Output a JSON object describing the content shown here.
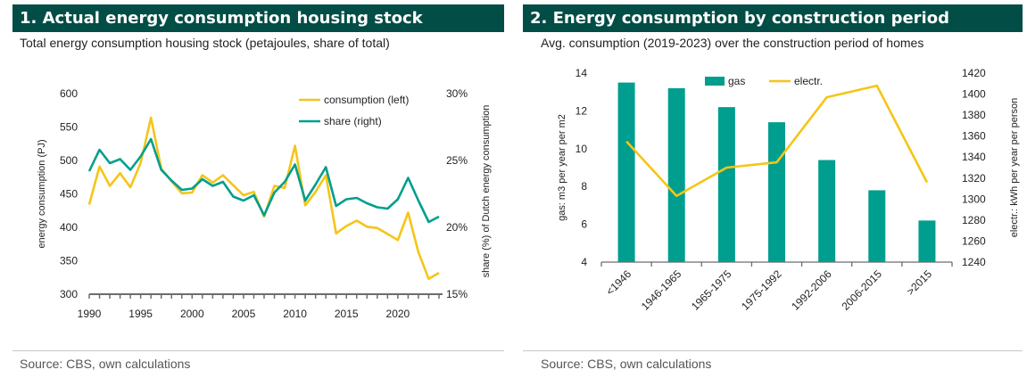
{
  "panels": {
    "left": {
      "title": "1.  Actual energy consumption housing stock",
      "subtitle": "Total energy consumption housing stock (petajoules, share of total)",
      "source": "Source: CBS, own calculations"
    },
    "right": {
      "title": "2. Energy consumption by construction period",
      "subtitle": "Avg. consumption (2019-2023) over the construction period of homes",
      "source": "Source: CBS, own calculations"
    }
  },
  "colors": {
    "header_bg": "#024d46",
    "teal": "#009e8e",
    "yellow": "#f5c518",
    "axis": "#6d6d6d"
  },
  "chart_data": [
    {
      "type": "line",
      "title": "1.  Actual energy consumption housing stock",
      "subtitle": "Total energy consumption housing stock (petajoules, share of total)",
      "xlabel": "",
      "ylabel": "energy consumption (PJ)",
      "y2label": "share (%) of Dutch energy consumption",
      "xlim": [
        1990,
        2024
      ],
      "ylim": [
        300,
        600
      ],
      "y2lim": [
        15,
        30
      ],
      "x_ticks": [
        1990,
        1995,
        2000,
        2005,
        2010,
        2015,
        2020
      ],
      "y_ticks": [
        "300",
        "350",
        "400",
        "450",
        "500",
        "550",
        "600"
      ],
      "y2_ticks": [
        "15%",
        "20%",
        "25%",
        "30%"
      ],
      "legend": "top-right",
      "x": [
        1990,
        1991,
        1992,
        1993,
        1994,
        1995,
        1996,
        1997,
        1998,
        1999,
        2000,
        2001,
        2002,
        2003,
        2004,
        2005,
        2006,
        2007,
        2008,
        2009,
        2010,
        2011,
        2012,
        2013,
        2014,
        2015,
        2016,
        2017,
        2018,
        2019,
        2020,
        2021,
        2022,
        2023,
        2024
      ],
      "series": [
        {
          "name": "consumption (left)",
          "axis": "left",
          "color": "#f5c518",
          "values": [
            434,
            491,
            462,
            481,
            460,
            496,
            564,
            488,
            469,
            451,
            452,
            478,
            467,
            478,
            463,
            448,
            453,
            416,
            462,
            459,
            522,
            433,
            453,
            478,
            391,
            402,
            410,
            401,
            399,
            390,
            381,
            422,
            363,
            323,
            332
          ]
        },
        {
          "name": "share (right)",
          "axis": "right",
          "color": "#009e8e",
          "values": [
            24.2,
            25.8,
            24.8,
            25.1,
            24.3,
            25.3,
            26.6,
            24.3,
            23.5,
            22.8,
            22.9,
            23.6,
            23.1,
            23.4,
            22.3,
            22.0,
            22.4,
            20.9,
            22.6,
            23.4,
            24.7,
            22.0,
            23.2,
            24.5,
            21.6,
            22.1,
            22.2,
            21.8,
            21.5,
            21.4,
            22.1,
            23.7,
            22.0,
            20.4,
            20.8
          ]
        }
      ]
    },
    {
      "type": "bar",
      "title": "2. Energy consumption by construction period",
      "subtitle": "Avg. consumption (2019-2023) over the construction period of homes",
      "xlabel": "",
      "ylabel": "gas: m3 per year per m2",
      "y2label": "electr.: kWh per year per person",
      "ylim": [
        4,
        14
      ],
      "y2lim": [
        1240,
        1420
      ],
      "y_ticks": [
        "4",
        "6",
        "8",
        "10",
        "12",
        "14"
      ],
      "y2_ticks": [
        "1240",
        "1260",
        "1280",
        "1300",
        "1320",
        "1340",
        "1360",
        "1380",
        "1400",
        "1420"
      ],
      "legend": "top-center",
      "categories": [
        "<1946",
        "1946-1965",
        "1965-1975",
        "1975-1992",
        "1992-2006",
        "2006-2015",
        ">2015"
      ],
      "series": [
        {
          "name": "gas",
          "kind": "bar",
          "axis": "left",
          "color": "#009e8e",
          "values": [
            13.5,
            13.2,
            12.2,
            11.4,
            9.4,
            7.8,
            6.2
          ]
        },
        {
          "name": "electr.",
          "kind": "line",
          "axis": "right",
          "color": "#f5c518",
          "values": [
            1355,
            1303,
            1330,
            1335,
            1397,
            1408,
            1316
          ]
        }
      ]
    }
  ]
}
